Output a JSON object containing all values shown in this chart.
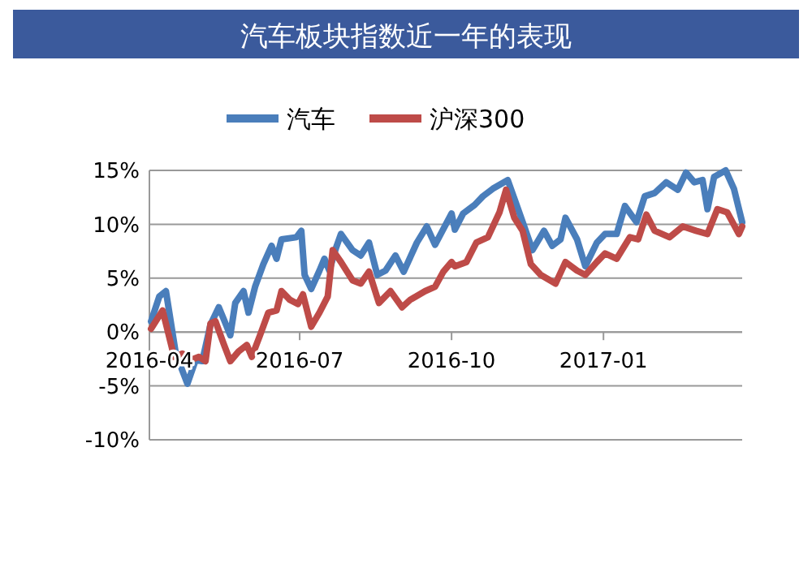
{
  "chart_data": {
    "type": "line",
    "title": "汽车板块指数近一年的表现",
    "legend": "top",
    "grid": "y",
    "line_style": "solid",
    "marker": "none",
    "xlim": [
      "2016-04-01",
      "2017-03-26"
    ],
    "xticks": [
      {
        "value": "2016-04-01",
        "label": "2016-04"
      },
      {
        "value": "2016-07-01",
        "label": "2016-07"
      },
      {
        "value": "2016-10-01",
        "label": "2016-10"
      },
      {
        "value": "2017-01-01",
        "label": "2017-01"
      }
    ],
    "ylim": [
      -10,
      15
    ],
    "yticks": [
      {
        "value": -10,
        "label": "-10%"
      },
      {
        "value": -5,
        "label": "-5%"
      },
      {
        "value": 0,
        "label": "0%"
      },
      {
        "value": 5,
        "label": "5%"
      },
      {
        "value": 10,
        "label": "10%"
      },
      {
        "value": 15,
        "label": "15%"
      }
    ],
    "series": [
      {
        "name": "汽车",
        "color": "#4a7ebb",
        "x": [
          "2016-04-02",
          "2016-04-07",
          "2016-04-11",
          "2016-04-17",
          "2016-04-24",
          "2016-04-29",
          "2016-05-03",
          "2016-05-08",
          "2016-05-13",
          "2016-05-16",
          "2016-05-20",
          "2016-05-23",
          "2016-05-28",
          "2016-05-31",
          "2016-06-04",
          "2016-06-09",
          "2016-06-14",
          "2016-06-17",
          "2016-06-20",
          "2016-06-29",
          "2016-07-02",
          "2016-07-04",
          "2016-07-08",
          "2016-07-13",
          "2016-07-16",
          "2016-07-19",
          "2016-07-23",
          "2016-07-26",
          "2016-08-02",
          "2016-08-07",
          "2016-08-12",
          "2016-08-17",
          "2016-08-22",
          "2016-08-28",
          "2016-09-02",
          "2016-09-10",
          "2016-09-16",
          "2016-09-21",
          "2016-10-01",
          "2016-10-03",
          "2016-10-08",
          "2016-10-15",
          "2016-10-20",
          "2016-10-26",
          "2016-11-04",
          "2016-11-08",
          "2016-11-14",
          "2016-11-19",
          "2016-11-26",
          "2016-12-01",
          "2016-12-06",
          "2016-12-09",
          "2016-12-16",
          "2016-12-21",
          "2016-12-28",
          "2017-01-02",
          "2017-01-09",
          "2017-01-14",
          "2017-01-21",
          "2017-01-26",
          "2017-02-01",
          "2017-02-08",
          "2017-02-15",
          "2017-02-20",
          "2017-02-25",
          "2017-03-02",
          "2017-03-05",
          "2017-03-09",
          "2017-03-16",
          "2017-03-21",
          "2017-03-26"
        ],
        "values": [
          1.0,
          3.3,
          3.8,
          -2.0,
          -4.8,
          -2.6,
          -2.7,
          0.7,
          2.3,
          1.2,
          -0.3,
          2.7,
          3.8,
          1.8,
          4.2,
          6.3,
          8.0,
          6.8,
          8.6,
          8.8,
          9.4,
          5.3,
          4.0,
          5.7,
          6.8,
          5.7,
          7.8,
          9.1,
          7.6,
          7.1,
          8.3,
          5.3,
          5.7,
          7.1,
          5.6,
          8.3,
          9.8,
          8.1,
          11.0,
          9.5,
          11.0,
          11.8,
          12.6,
          13.3,
          14.1,
          12.4,
          9.8,
          7.6,
          9.4,
          8.0,
          8.6,
          10.6,
          8.6,
          6.1,
          8.3,
          9.1,
          9.1,
          11.7,
          10.2,
          12.6,
          12.9,
          13.9,
          13.2,
          14.8,
          13.9,
          14.1,
          11.4,
          14.4,
          15.0,
          13.3,
          10.2
        ]
      },
      {
        "name": "沪深300",
        "color": "#be4b48",
        "x": [
          "2016-04-02",
          "2016-04-09",
          "2016-04-16",
          "2016-04-21",
          "2016-04-26",
          "2016-05-01",
          "2016-05-05",
          "2016-05-08",
          "2016-05-11",
          "2016-05-16",
          "2016-05-20",
          "2016-05-25",
          "2016-05-30",
          "2016-06-02",
          "2016-06-07",
          "2016-06-12",
          "2016-06-17",
          "2016-06-20",
          "2016-06-25",
          "2016-06-30",
          "2016-07-03",
          "2016-07-08",
          "2016-07-13",
          "2016-07-18",
          "2016-07-21",
          "2016-07-26",
          "2016-08-02",
          "2016-08-07",
          "2016-08-12",
          "2016-08-18",
          "2016-08-25",
          "2016-09-01",
          "2016-09-06",
          "2016-09-15",
          "2016-09-21",
          "2016-09-26",
          "2016-10-01",
          "2016-10-03",
          "2016-10-10",
          "2016-10-16",
          "2016-10-23",
          "2016-10-30",
          "2016-11-03",
          "2016-11-08",
          "2016-11-13",
          "2016-11-18",
          "2016-11-24",
          "2016-12-03",
          "2016-12-09",
          "2016-12-16",
          "2016-12-21",
          "2016-12-28",
          "2017-01-02",
          "2017-01-09",
          "2017-01-17",
          "2017-01-22",
          "2017-01-27",
          "2017-02-01",
          "2017-02-10",
          "2017-02-18",
          "2017-02-26",
          "2017-03-05",
          "2017-03-11",
          "2017-03-17",
          "2017-03-24",
          "2017-03-26"
        ],
        "values": [
          0.3,
          2.0,
          -2.3,
          -2.0,
          -2.6,
          -2.3,
          -2.7,
          0.8,
          1.0,
          -1.1,
          -2.7,
          -1.8,
          -1.2,
          -2.3,
          -0.3,
          1.8,
          2.0,
          3.8,
          3.0,
          2.6,
          3.5,
          0.5,
          1.8,
          3.3,
          7.6,
          6.5,
          4.8,
          4.5,
          5.6,
          2.7,
          3.8,
          2.3,
          3.0,
          3.8,
          4.2,
          5.6,
          6.5,
          6.1,
          6.5,
          8.3,
          8.8,
          11.1,
          13.2,
          10.6,
          9.4,
          6.3,
          5.3,
          4.5,
          6.5,
          5.7,
          5.3,
          6.5,
          7.3,
          6.8,
          8.8,
          8.6,
          10.9,
          9.4,
          8.8,
          9.8,
          9.4,
          9.1,
          11.4,
          11.1,
          9.1,
          9.8
        ]
      }
    ]
  }
}
